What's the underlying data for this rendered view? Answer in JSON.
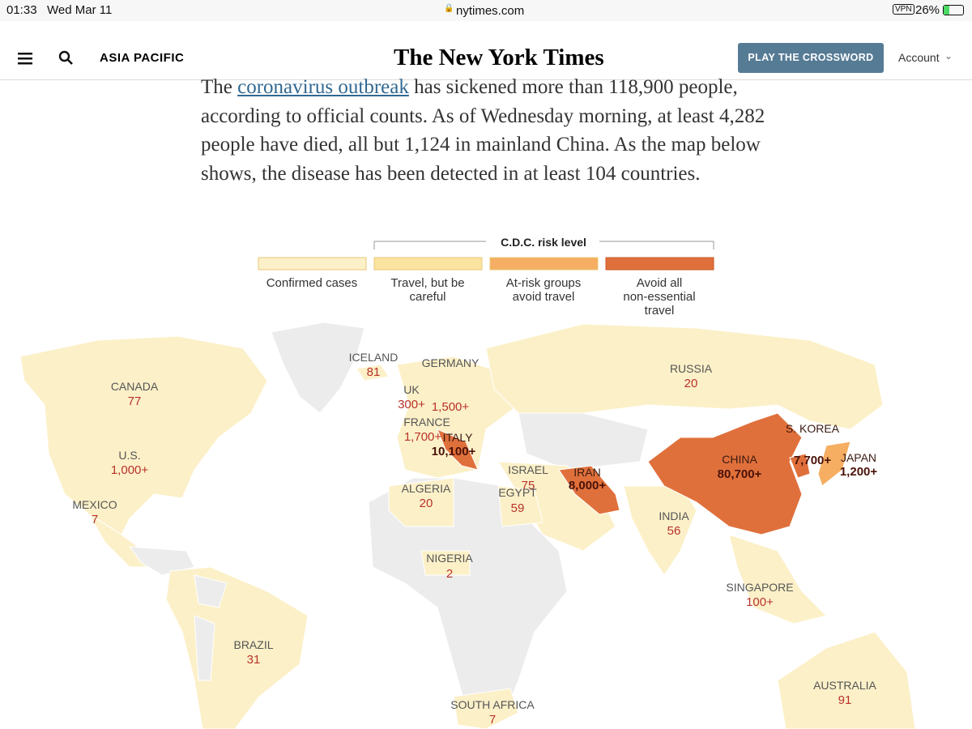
{
  "status_bar": {
    "time": "01:33",
    "date": "Wed Mar 11",
    "url": "nytimes.com",
    "vpn": "VPN",
    "battery": "26%"
  },
  "nav": {
    "section": "ASIA PACIFIC",
    "logo": "The New York Times",
    "button": "PLAY THE CROSSWORD",
    "account": "Account"
  },
  "article": {
    "before_link": "The ",
    "link": "coronavirus outbreak",
    "after_link": " has sickened more than 118,900 people, according to official counts. As of Wednesday morning, at least 4,282 people have died, all but 1,124 in mainland China. As the map below shows, the disease has been detected in at least 104 countries."
  },
  "legend": {
    "title": "C.D.C. risk level",
    "items": [
      {
        "label": "Confirmed cases",
        "color": "#fcf0c8"
      },
      {
        "label": "Travel, but be careful",
        "color": "#fbe3a0"
      },
      {
        "label": "At-risk groups avoid travel",
        "color": "#f5ae62"
      },
      {
        "label": "Avoid all non-essential travel",
        "color": "#e0703b"
      }
    ]
  },
  "map": {
    "labels": [
      {
        "name": "ICELAND",
        "value": "81"
      },
      {
        "name": "GERMANY",
        "value": "1,500+"
      },
      {
        "name": "UK",
        "value": "300+"
      },
      {
        "name": "FRANCE",
        "value": "1,700+"
      },
      {
        "name": "ITALY",
        "value": "10,100+"
      },
      {
        "name": "CANADA",
        "value": "77"
      },
      {
        "name": "U.S.",
        "value": "1,000+"
      },
      {
        "name": "MEXICO",
        "value": "7"
      },
      {
        "name": "RUSSIA",
        "value": "20"
      },
      {
        "name": "S. KOREA",
        "value": "7,700+"
      },
      {
        "name": "JAPAN",
        "value": "1,200+"
      },
      {
        "name": "CHINA",
        "value": "80,700+"
      },
      {
        "name": "IRAN",
        "value": "8,000+"
      },
      {
        "name": "ISRAEL",
        "value": "75"
      },
      {
        "name": "EGYPT",
        "value": "59"
      },
      {
        "name": "ALGERIA",
        "value": "20"
      },
      {
        "name": "INDIA",
        "value": "56"
      },
      {
        "name": "NIGERIA",
        "value": "2"
      },
      {
        "name": "SINGAPORE",
        "value": "100+"
      },
      {
        "name": "BRAZIL",
        "value": "31"
      },
      {
        "name": "AUSTRALIA",
        "value": "91"
      },
      {
        "name": "SOUTH AFRICA",
        "value": "7"
      }
    ]
  }
}
